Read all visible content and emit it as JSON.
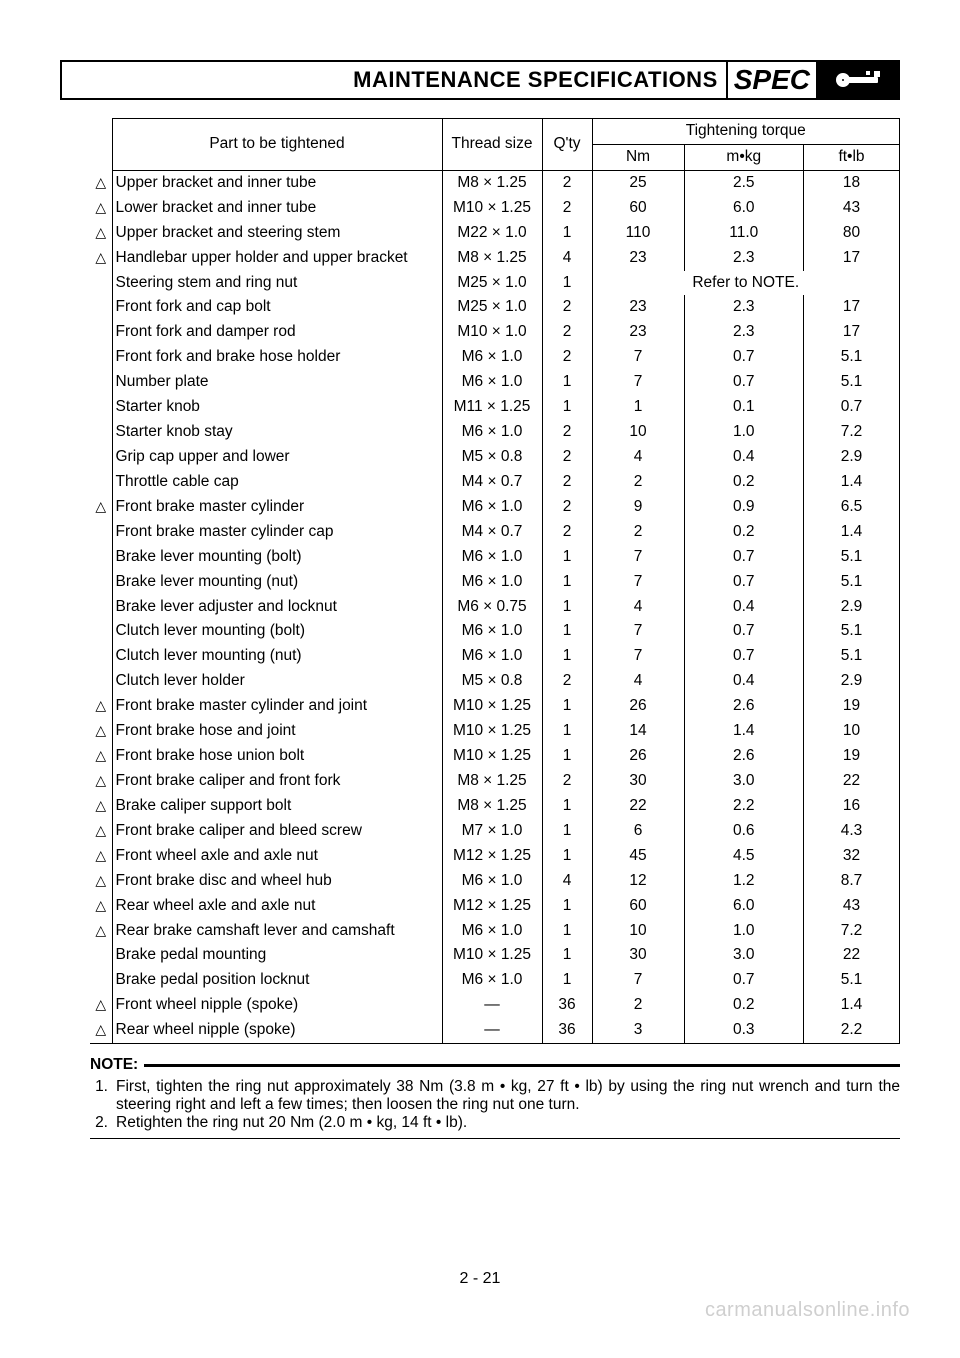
{
  "header": {
    "title": "MAINTENANCE SPECIFICATIONS",
    "spec_label": "SPEC"
  },
  "table": {
    "columns": {
      "part": "Part to be tightened",
      "thread": "Thread size",
      "qty": "Q'ty",
      "torque_header": "Tightening torque",
      "nm": "Nm",
      "mkg": "m•kg",
      "ftlb": "ft•lb"
    },
    "note_ref": "Refer to NOTE.",
    "rows": [
      {
        "flag": true,
        "part": "Upper bracket and inner tube",
        "thread": "M8 × 1.25",
        "qty": "2",
        "nm": "25",
        "mkg": "2.5",
        "ftlb": "18"
      },
      {
        "flag": true,
        "part": "Lower bracket and inner tube",
        "thread": "M10 × 1.25",
        "qty": "2",
        "nm": "60",
        "mkg": "6.0",
        "ftlb": "43"
      },
      {
        "flag": true,
        "part": "Upper bracket and steering stem",
        "thread": "M22 × 1.0",
        "qty": "1",
        "nm": "110",
        "mkg": "11.0",
        "ftlb": "80"
      },
      {
        "flag": true,
        "part": "Handlebar upper holder and upper bracket",
        "thread": "M8 × 1.25",
        "qty": "4",
        "nm": "23",
        "mkg": "2.3",
        "ftlb": "17"
      },
      {
        "flag": false,
        "part": "Steering stem and ring nut",
        "thread": "M25 × 1.0",
        "qty": "1",
        "note": true
      },
      {
        "flag": false,
        "part": "Front fork and cap bolt",
        "thread": "M25 × 1.0",
        "qty": "2",
        "nm": "23",
        "mkg": "2.3",
        "ftlb": "17"
      },
      {
        "flag": false,
        "part": "Front fork and damper rod",
        "thread": "M10 × 1.0",
        "qty": "2",
        "nm": "23",
        "mkg": "2.3",
        "ftlb": "17"
      },
      {
        "flag": false,
        "part": "Front fork and brake hose holder",
        "thread": "M6 × 1.0",
        "qty": "2",
        "nm": "7",
        "mkg": "0.7",
        "ftlb": "5.1"
      },
      {
        "flag": false,
        "part": "Number plate",
        "thread": "M6 × 1.0",
        "qty": "1",
        "nm": "7",
        "mkg": "0.7",
        "ftlb": "5.1"
      },
      {
        "flag": false,
        "part": "Starter knob",
        "thread": "M11 × 1.25",
        "qty": "1",
        "nm": "1",
        "mkg": "0.1",
        "ftlb": "0.7"
      },
      {
        "flag": false,
        "part": "Starter knob stay",
        "thread": "M6 × 1.0",
        "qty": "2",
        "nm": "10",
        "mkg": "1.0",
        "ftlb": "7.2"
      },
      {
        "flag": false,
        "part": "Grip cap upper and lower",
        "thread": "M5 × 0.8",
        "qty": "2",
        "nm": "4",
        "mkg": "0.4",
        "ftlb": "2.9"
      },
      {
        "flag": false,
        "part": "Throttle cable cap",
        "thread": "M4 × 0.7",
        "qty": "2",
        "nm": "2",
        "mkg": "0.2",
        "ftlb": "1.4"
      },
      {
        "flag": true,
        "part": "Front brake master cylinder",
        "thread": "M6 × 1.0",
        "qty": "2",
        "nm": "9",
        "mkg": "0.9",
        "ftlb": "6.5"
      },
      {
        "flag": false,
        "part": "Front brake master cylinder cap",
        "thread": "M4 × 0.7",
        "qty": "2",
        "nm": "2",
        "mkg": "0.2",
        "ftlb": "1.4"
      },
      {
        "flag": false,
        "part": "Brake lever mounting (bolt)",
        "thread": "M6 × 1.0",
        "qty": "1",
        "nm": "7",
        "mkg": "0.7",
        "ftlb": "5.1"
      },
      {
        "flag": false,
        "part": "Brake lever mounting (nut)",
        "thread": "M6 × 1.0",
        "qty": "1",
        "nm": "7",
        "mkg": "0.7",
        "ftlb": "5.1"
      },
      {
        "flag": false,
        "part": "Brake lever adjuster and locknut",
        "thread": "M6 × 0.75",
        "qty": "1",
        "nm": "4",
        "mkg": "0.4",
        "ftlb": "2.9"
      },
      {
        "flag": false,
        "part": "Clutch lever mounting (bolt)",
        "thread": "M6 × 1.0",
        "qty": "1",
        "nm": "7",
        "mkg": "0.7",
        "ftlb": "5.1"
      },
      {
        "flag": false,
        "part": "Clutch lever mounting (nut)",
        "thread": "M6 × 1.0",
        "qty": "1",
        "nm": "7",
        "mkg": "0.7",
        "ftlb": "5.1"
      },
      {
        "flag": false,
        "part": "Clutch lever holder",
        "thread": "M5 × 0.8",
        "qty": "2",
        "nm": "4",
        "mkg": "0.4",
        "ftlb": "2.9"
      },
      {
        "flag": true,
        "part": "Front brake master cylinder and joint",
        "thread": "M10 × 1.25",
        "qty": "1",
        "nm": "26",
        "mkg": "2.6",
        "ftlb": "19"
      },
      {
        "flag": true,
        "part": "Front brake hose and joint",
        "thread": "M10 × 1.25",
        "qty": "1",
        "nm": "14",
        "mkg": "1.4",
        "ftlb": "10"
      },
      {
        "flag": true,
        "part": "Front brake hose union bolt",
        "thread": "M10 × 1.25",
        "qty": "1",
        "nm": "26",
        "mkg": "2.6",
        "ftlb": "19"
      },
      {
        "flag": true,
        "part": "Front brake caliper and front fork",
        "thread": "M8 × 1.25",
        "qty": "2",
        "nm": "30",
        "mkg": "3.0",
        "ftlb": "22"
      },
      {
        "flag": true,
        "part": "Brake caliper support bolt",
        "thread": "M8 × 1.25",
        "qty": "1",
        "nm": "22",
        "mkg": "2.2",
        "ftlb": "16"
      },
      {
        "flag": true,
        "part": "Front brake caliper and bleed screw",
        "thread": "M7 × 1.0",
        "qty": "1",
        "nm": "6",
        "mkg": "0.6",
        "ftlb": "4.3"
      },
      {
        "flag": true,
        "part": "Front wheel axle and axle nut",
        "thread": "M12 × 1.25",
        "qty": "1",
        "nm": "45",
        "mkg": "4.5",
        "ftlb": "32"
      },
      {
        "flag": true,
        "part": "Front brake disc and wheel hub",
        "thread": "M6 × 1.0",
        "qty": "4",
        "nm": "12",
        "mkg": "1.2",
        "ftlb": "8.7"
      },
      {
        "flag": true,
        "part": "Rear wheel axle and axle nut",
        "thread": "M12 × 1.25",
        "qty": "1",
        "nm": "60",
        "mkg": "6.0",
        "ftlb": "43"
      },
      {
        "flag": true,
        "part": "Rear brake camshaft lever and camshaft",
        "thread": "M6 × 1.0",
        "qty": "1",
        "nm": "10",
        "mkg": "1.0",
        "ftlb": "7.2"
      },
      {
        "flag": false,
        "part": "Brake pedal mounting",
        "thread": "M10 × 1.25",
        "qty": "1",
        "nm": "30",
        "mkg": "3.0",
        "ftlb": "22"
      },
      {
        "flag": false,
        "part": "Brake pedal position locknut",
        "thread": "M6 × 1.0",
        "qty": "1",
        "nm": "7",
        "mkg": "0.7",
        "ftlb": "5.1"
      },
      {
        "flag": true,
        "part": "Front wheel nipple (spoke)",
        "thread": "—",
        "qty": "36",
        "nm": "2",
        "mkg": "0.2",
        "ftlb": "1.4"
      },
      {
        "flag": true,
        "part": "Rear wheel nipple (spoke)",
        "thread": "—",
        "qty": "36",
        "nm": "3",
        "mkg": "0.3",
        "ftlb": "2.2"
      }
    ]
  },
  "note": {
    "label": "NOTE:",
    "items": [
      "First, tighten the ring nut approximately 38 Nm (3.8 m • kg, 27 ft • lb) by using the ring nut wrench and turn the steering right and left a few times; then loosen the ring nut one turn.",
      "Retighten the ring nut 20 Nm (2.0 m • kg, 14 ft • lb)."
    ]
  },
  "footer": {
    "page_number": "2 - 21",
    "watermark": "carmanualsonline.info"
  }
}
